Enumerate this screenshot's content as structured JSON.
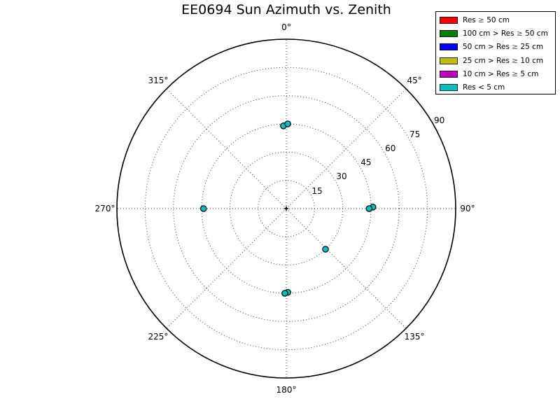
{
  "title": "EE0694 Sun Azimuth vs. Zenith",
  "legend": {
    "position": "upper right",
    "entries": [
      {
        "label": "Res ≥ 50 cm",
        "color": "#ff0000"
      },
      {
        "label": "100 cm > Res ≥ 50 cm",
        "color": "#008000"
      },
      {
        "label": "50 cm > Res ≥ 25 cm",
        "color": "#0000ff"
      },
      {
        "label": "25 cm > Res ≥ 10 cm",
        "color": "#bfbf00"
      },
      {
        "label": "10 cm > Res ≥ 5 cm",
        "color": "#bf00bf"
      },
      {
        "label": "Res < 5 cm",
        "color": "#00bfbf"
      }
    ]
  },
  "chart_data": {
    "type": "scatter",
    "projection": "polar",
    "title": "EE0694 Sun Azimuth vs. Zenith",
    "angle_convention": "azimuth degrees, 0 at top, clockwise",
    "angle_ticks": [
      "0°",
      "45°",
      "90°",
      "135°",
      "180°",
      "225°",
      "270°",
      "315°"
    ],
    "angle_tick_values": [
      0,
      45,
      90,
      135,
      180,
      225,
      270,
      315
    ],
    "radial_ticks": [
      15,
      30,
      45,
      60,
      75,
      90
    ],
    "radial_max": 90,
    "grid": "dotted",
    "legend_position": "upper right",
    "series": [
      {
        "name": "Res < 5 cm",
        "color": "#00bfbf",
        "points": [
          {
            "azimuth": 358,
            "zenith": 44
          },
          {
            "azimuth": 1,
            "zenith": 45
          },
          {
            "azimuth": 89,
            "zenith": 46
          },
          {
            "azimuth": 90,
            "zenith": 44
          },
          {
            "azimuth": 136,
            "zenith": 30
          },
          {
            "azimuth": 179,
            "zenith": 44.5
          },
          {
            "azimuth": 181,
            "zenith": 45
          },
          {
            "azimuth": 270,
            "zenith": 44
          }
        ]
      }
    ]
  }
}
